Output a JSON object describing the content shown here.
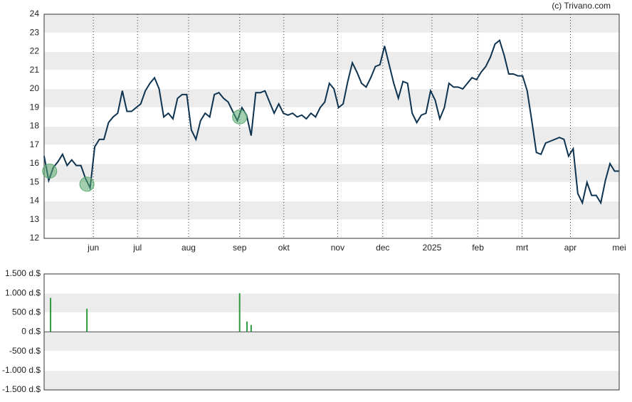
{
  "copyright": "(c) Trivano.com",
  "chart_data": [
    {
      "type": "line",
      "ylim": [
        12,
        24
      ],
      "yticks": [
        12,
        13,
        14,
        15,
        16,
        17,
        18,
        19,
        20,
        21,
        22,
        23,
        24
      ],
      "xlim": [
        0,
        125
      ],
      "xticks": [
        {
          "value": 10.7,
          "label": "jun"
        },
        {
          "value": 20.3,
          "label": "jul"
        },
        {
          "value": 31.4,
          "label": "aug"
        },
        {
          "value": 42.5,
          "label": "sep"
        },
        {
          "value": 52.1,
          "label": "okt"
        },
        {
          "value": 63.8,
          "label": "nov"
        },
        {
          "value": 73.6,
          "label": "dec"
        },
        {
          "value": 84.3,
          "label": "2025"
        },
        {
          "value": 94.3,
          "label": "feb"
        },
        {
          "value": 103.9,
          "label": "mrt"
        },
        {
          "value": 114.4,
          "label": "apr"
        },
        {
          "value": 125,
          "label": "mei"
        }
      ],
      "grid": true,
      "series": [
        {
          "color": "#0d3350",
          "values": [
            16.4,
            15.1,
            15.8,
            16.1,
            16.5,
            15.9,
            16.2,
            15.9,
            15.9,
            15.2,
            14.7,
            16.9,
            17.3,
            17.3,
            18.2,
            18.5,
            18.7,
            19.9,
            18.8,
            18.8,
            19.0,
            19.2,
            19.9,
            20.3,
            20.6,
            20.0,
            18.5,
            18.7,
            18.4,
            19.5,
            19.7,
            19.7,
            17.8,
            17.3,
            18.3,
            18.7,
            18.5,
            19.7,
            19.8,
            19.5,
            19.3,
            18.8,
            18.3,
            19.0,
            18.6,
            17.5,
            19.8,
            19.8,
            19.9,
            19.3,
            18.7,
            19.2,
            18.7,
            18.6,
            18.7,
            18.5,
            18.6,
            18.4,
            18.7,
            18.5,
            19.0,
            19.3,
            20.3,
            20.0,
            19.0,
            19.2,
            20.4,
            21.4,
            20.9,
            20.3,
            20.1,
            20.6,
            21.2,
            21.3,
            22.3,
            21.3,
            20.3,
            19.5,
            20.4,
            20.3,
            18.7,
            18.2,
            18.6,
            18.7,
            19.9,
            19.4,
            18.4,
            19.0,
            20.3,
            20.1,
            20.1,
            20.0,
            20.3,
            20.6,
            20.5,
            20.9,
            21.2,
            21.7,
            22.4,
            22.6,
            21.8,
            20.8,
            20.8,
            20.7,
            20.7,
            19.9,
            18.3,
            16.6,
            16.5,
            17.1,
            17.2,
            17.3,
            17.4,
            17.3,
            16.4,
            16.8,
            14.4,
            13.9,
            15.0,
            14.3,
            14.3,
            13.9,
            15.1,
            16.0,
            15.6,
            15.6
          ]
        },
        {
          "type": "scatter",
          "color": "#5aa870",
          "x": [
            1.2,
            9.3,
            42.5
          ],
          "values": [
            15.6,
            14.9,
            18.5
          ]
        }
      ]
    },
    {
      "type": "bar",
      "ylim": [
        -1500,
        1500
      ],
      "yticks": [
        {
          "value": -1500,
          "label": "-1.500 d.$"
        },
        {
          "value": -1000,
          "label": "-1.000 d.$"
        },
        {
          "value": -500,
          "label": "-500 d.$"
        },
        {
          "value": 0,
          "label": "0 d.$"
        },
        {
          "value": 500,
          "label": "500 d.$"
        },
        {
          "value": 1000,
          "label": "1.000 d.$"
        },
        {
          "value": 1500,
          "label": "1.500 d.$"
        }
      ],
      "xlim": [
        0,
        125
      ],
      "color": "#2e9a3e",
      "x": [
        1.4,
        9.3,
        42.5,
        44.1,
        45.0
      ],
      "values": [
        880,
        600,
        1000,
        270,
        180
      ]
    }
  ]
}
